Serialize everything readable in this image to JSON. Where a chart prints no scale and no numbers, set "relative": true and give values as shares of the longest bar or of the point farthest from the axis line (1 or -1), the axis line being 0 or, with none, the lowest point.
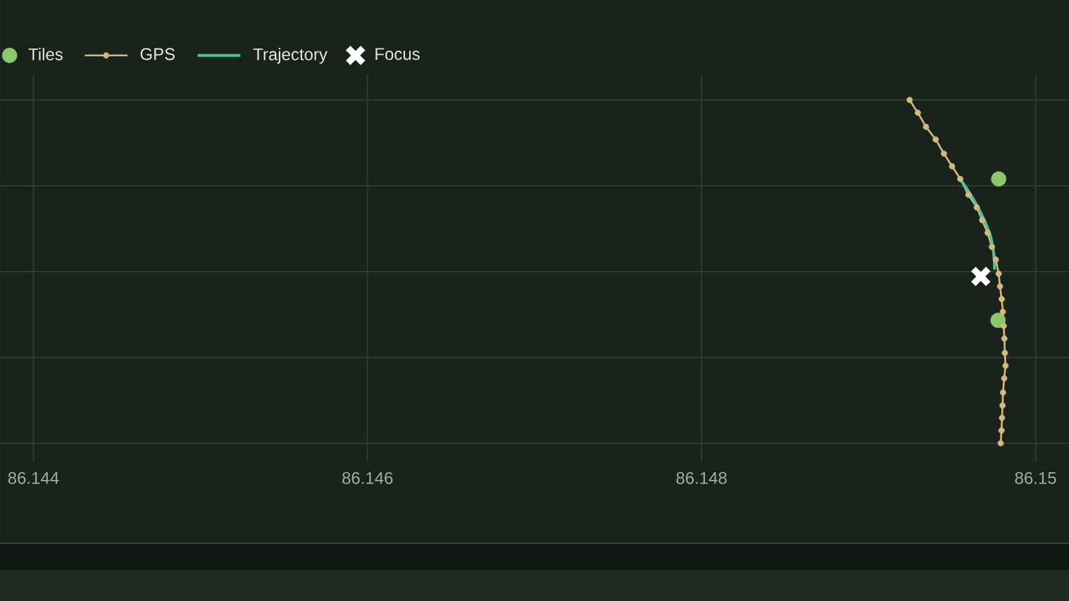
{
  "chart_data": {
    "type": "line",
    "relative": true,
    "xlim": [
      86.1438,
      86.1502
    ],
    "xticks": [
      86.144,
      86.146,
      86.148,
      86.15
    ],
    "tick_labels": "x",
    "grid": true,
    "legend": "top left",
    "series": [
      {
        "name": "Tiles",
        "type": "scatter",
        "color": "#8bc86a",
        "marker": "circle",
        "x": [
          86.149779,
          86.149775
        ],
        "values": [
          0.77,
          0.358
        ]
      },
      {
        "name": "GPS",
        "color": "#d4b97c",
        "marker": "circle",
        "line_style": "solid",
        "x": [
          86.149246,
          86.149295,
          86.149344,
          86.149402,
          86.149451,
          86.1495,
          86.149549,
          86.149598,
          86.149648,
          86.14968,
          86.149713,
          86.149738,
          86.149762,
          86.149779,
          86.149787,
          86.149797,
          86.149804,
          86.149809,
          86.149813,
          86.149816,
          86.14982,
          86.149812,
          86.149805,
          86.149802,
          86.149799,
          86.149796,
          86.149791
        ],
        "values": [
          1.0,
          0.963,
          0.922,
          0.885,
          0.844,
          0.807,
          0.77,
          0.724,
          0.687,
          0.65,
          0.613,
          0.572,
          0.535,
          0.494,
          0.457,
          0.42,
          0.383,
          0.342,
          0.305,
          0.263,
          0.226,
          0.189,
          0.148,
          0.11,
          0.074,
          0.037,
          0.0
        ]
      },
      {
        "name": "Trajectory",
        "color": "#4dbf9b",
        "marker": "none",
        "line_style": "solid",
        "x": [
          86.149549,
          86.149607,
          86.149656,
          86.149697,
          86.14973,
          86.149746,
          86.149754,
          86.149754
        ],
        "values": [
          0.77,
          0.728,
          0.687,
          0.646,
          0.605,
          0.568,
          0.523,
          0.506
        ]
      },
      {
        "name": "Focus",
        "type": "scatter",
        "color": "#ffffff",
        "marker": "cross",
        "x": [
          86.149672
        ],
        "values": [
          0.486
        ]
      }
    ]
  }
}
